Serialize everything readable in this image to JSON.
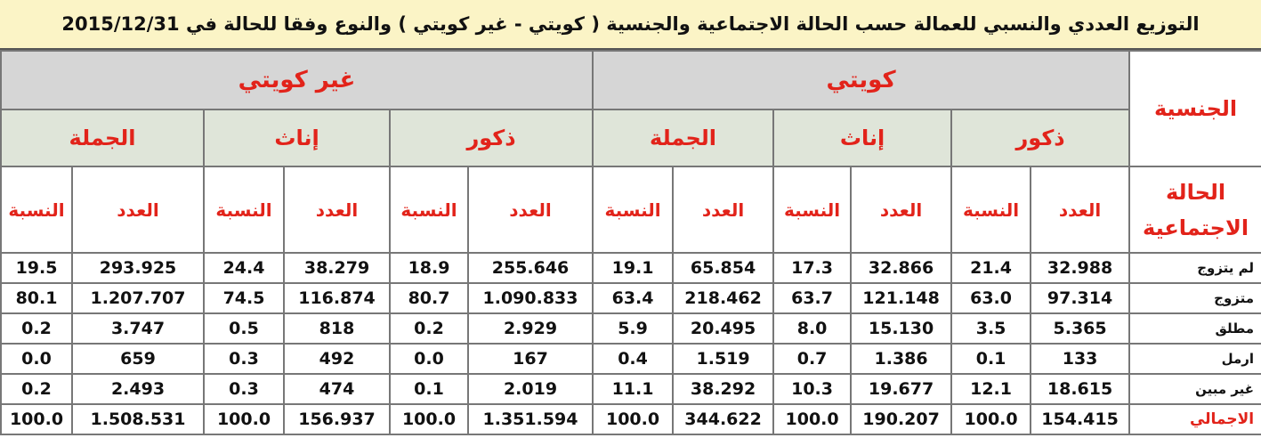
{
  "title": "التوزيع العددي والنسبي للعمالة حسب الحالة الاجتماعية والجنسية ( كويتي - غير كويتي ) والنوع وفقا للحالة في 2015/12/31",
  "header": {
    "nationality": "الجنسية",
    "marital_status": "الحالة الاجتماعية",
    "groups": [
      "كويتي",
      "غير كويتي"
    ],
    "subgroups": [
      "ذكور",
      "إناث",
      "الجملة"
    ],
    "columns": [
      "العدد",
      "النسبة"
    ]
  },
  "rows": [
    {
      "label": "لم يتزوج",
      "cells": [
        "32.988",
        "21.4",
        "32.866",
        "17.3",
        "65.854",
        "19.1",
        "255.646",
        "18.9",
        "38.279",
        "24.4",
        "293.925",
        "19.5"
      ]
    },
    {
      "label": "متزوج",
      "cells": [
        "97.314",
        "63.0",
        "121.148",
        "63.7",
        "218.462",
        "63.4",
        "1.090.833",
        "80.7",
        "116.874",
        "74.5",
        "1.207.707",
        "80.1"
      ]
    },
    {
      "label": "مطلق",
      "cells": [
        "5.365",
        "3.5",
        "15.130",
        "8.0",
        "20.495",
        "5.9",
        "2.929",
        "0.2",
        "818",
        "0.5",
        "3.747",
        "0.2"
      ]
    },
    {
      "label": "ارمل",
      "cells": [
        "133",
        "0.1",
        "1.386",
        "0.7",
        "1.519",
        "0.4",
        "167",
        "0.0",
        "492",
        "0.3",
        "659",
        "0.0"
      ]
    },
    {
      "label": "غير مبين",
      "cells": [
        "18.615",
        "12.1",
        "19.677",
        "10.3",
        "38.292",
        "11.1",
        "2.019",
        "0.1",
        "474",
        "0.3",
        "2.493",
        "0.2"
      ]
    },
    {
      "label": "الاجمالي",
      "cells": [
        "154.415",
        "100.0",
        "190.207",
        "100.0",
        "344.622",
        "100.0",
        "1.351.594",
        "100.0",
        "156.937",
        "100.0",
        "1.508.531",
        "100.0"
      ]
    }
  ]
}
